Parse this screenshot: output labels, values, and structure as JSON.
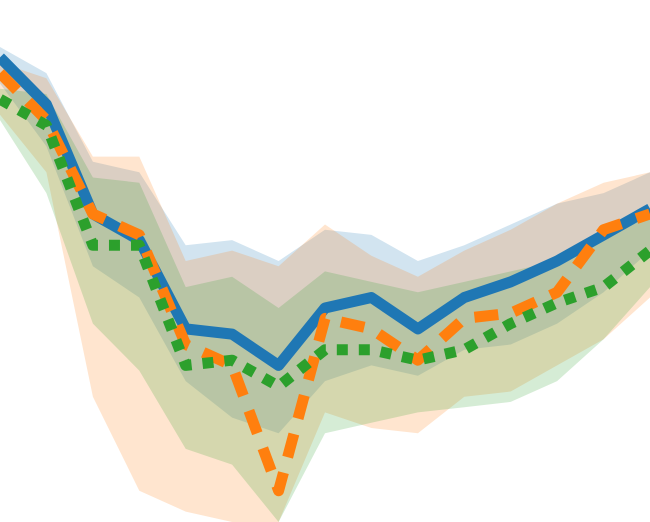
{
  "chart_data": {
    "type": "line",
    "x": [
      0,
      1,
      2,
      3,
      4,
      5,
      6,
      7,
      8,
      9,
      10,
      11,
      12,
      13,
      14
    ],
    "ylim": [
      0,
      100
    ],
    "grid": false,
    "series": [
      {
        "color": "#1f77b4",
        "line_style": "solid",
        "values": [
          89,
          80,
          59,
          54,
          37,
          36,
          30,
          41,
          43,
          37,
          43,
          46,
          50,
          55,
          60
        ],
        "band_upper": [
          91,
          86,
          69,
          67,
          53,
          54,
          50,
          56,
          55,
          50,
          53,
          57,
          61,
          63,
          67
        ],
        "band_lower": [
          84,
          72,
          49,
          43,
          27,
          20,
          17,
          27,
          30,
          28,
          33,
          34,
          38,
          44,
          52
        ]
      },
      {
        "color": "#ff7f0e",
        "line_style": "dashed",
        "values": [
          86,
          77,
          59,
          55,
          34,
          30,
          6,
          39,
          37,
          31,
          39,
          40,
          44,
          56,
          59
        ],
        "band_upper": [
          88,
          85,
          70,
          70,
          50,
          52,
          49,
          57,
          51,
          47,
          52,
          56,
          61,
          65,
          67
        ],
        "band_lower": [
          78,
          67,
          24,
          6,
          2,
          0,
          0,
          21,
          18,
          17,
          24,
          25,
          30,
          35,
          43
        ]
      },
      {
        "color": "#2ca02c",
        "line_style": "dotted",
        "values": [
          81,
          76,
          53,
          53,
          30,
          31,
          26,
          33,
          33,
          31,
          33,
          38,
          42,
          45,
          52
        ],
        "band_upper": [
          83,
          82,
          66,
          65,
          45,
          47,
          41,
          48,
          46,
          44,
          46,
          48,
          50,
          56,
          60
        ],
        "band_lower": [
          77,
          63,
          38,
          29,
          14,
          11,
          0,
          17,
          19,
          21,
          22,
          23,
          27,
          35,
          45
        ]
      }
    ]
  }
}
